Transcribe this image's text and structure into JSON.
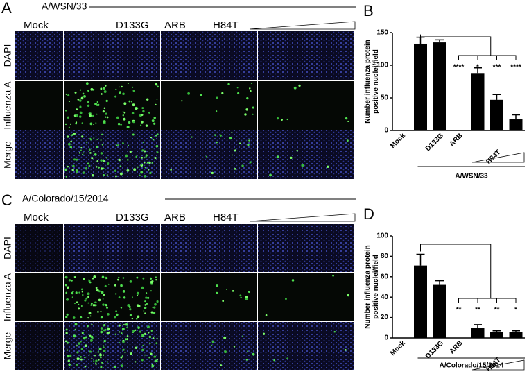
{
  "panels": [
    {
      "letter": "A",
      "strain": "A/WSN/33",
      "columns": [
        "Mock",
        null,
        "D133G",
        "ARB",
        "H84T",
        null,
        null
      ],
      "rows": [
        "DAPI",
        "Influenza A",
        "Merge"
      ]
    },
    {
      "letter": "C",
      "strain": "A/Colorado/15/2014",
      "columns": [
        "Mock",
        null,
        "D133G",
        "ARB",
        "H84T",
        null,
        null
      ],
      "rows": [
        "DAPI",
        "Influenza A",
        "Merge"
      ]
    }
  ],
  "chart_data": [
    {
      "type": "bar",
      "label": "B",
      "ylabel": "Number influenza protein positive nuclei/field",
      "xlabel": "A/WSN/33",
      "categories": [
        "Mock",
        null,
        "D133G",
        "ARB",
        null,
        "H84T",
        null
      ],
      "values": [
        0,
        133,
        135,
        0,
        88,
        47,
        17
      ],
      "errors": [
        0,
        10,
        4,
        0,
        8,
        8,
        7
      ],
      "color": "#000000",
      "ylim": [
        0,
        150
      ],
      "yticks": [
        0,
        50,
        100,
        150
      ],
      "significance": [
        "****",
        "*",
        "***",
        "****"
      ]
    },
    {
      "type": "bar",
      "label": "D",
      "ylabel": "Number influenza protein positive nuclei/field",
      "xlabel": "A/Colorado/15/2014",
      "categories": [
        "Mock",
        null,
        "D133G",
        "ARB",
        null,
        "H84T",
        null
      ],
      "values": [
        0,
        71,
        52,
        0,
        10,
        6,
        6
      ],
      "errors": [
        0,
        11,
        4,
        0,
        3,
        1,
        1
      ],
      "color": "#000000",
      "ylim": [
        0,
        100
      ],
      "yticks": [
        0,
        20,
        40,
        60,
        80,
        100
      ],
      "significance": [
        "**",
        "**",
        "**",
        "*"
      ]
    }
  ]
}
